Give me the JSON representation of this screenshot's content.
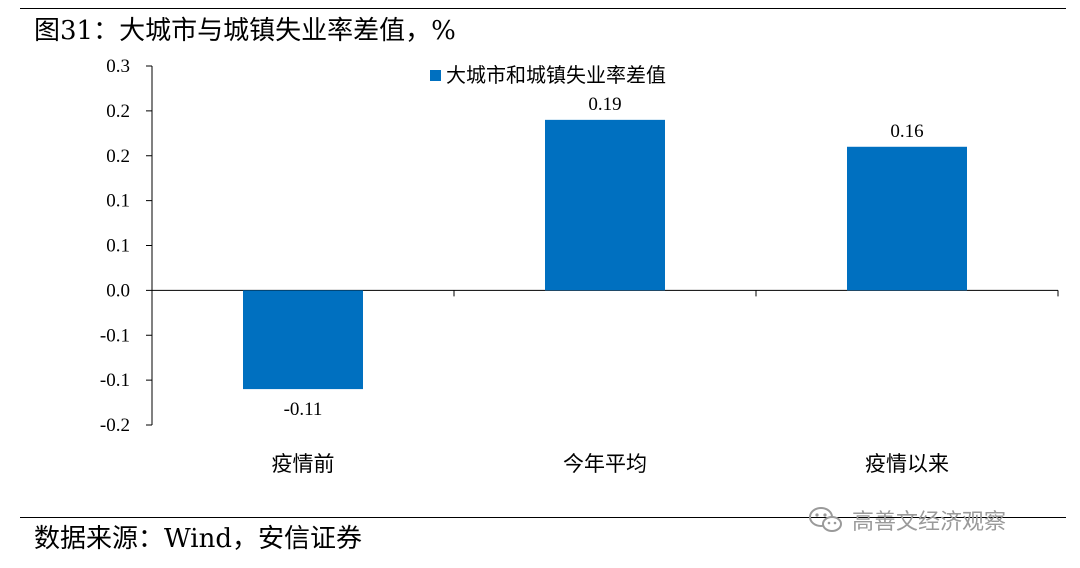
{
  "header": {
    "title": "图31：大城市与城镇失业率差值，%"
  },
  "footer": {
    "source": "数据来源：Wind，安信证券"
  },
  "watermark": {
    "text": "高善文经济观察",
    "icon": "wechat-icon",
    "color": "#9a9a9a"
  },
  "chart_data": {
    "type": "bar",
    "title": "",
    "xlabel": "",
    "ylabel": "",
    "categories": [
      "疫情前",
      "今年平均",
      "疫情以来"
    ],
    "series": [
      {
        "name": "大城市和城镇失业率差值",
        "values": [
          -0.11,
          0.19,
          0.16
        ],
        "color": "#0070C0"
      }
    ],
    "data_labels": [
      "-0.11",
      "0.19",
      "0.16"
    ],
    "ylim": [
      -0.15,
      0.25
    ],
    "y_ticks": [
      0.25,
      0.2,
      0.15,
      0.1,
      0.05,
      0.0,
      -0.05,
      -0.1,
      -0.15
    ],
    "y_tick_labels": [
      "0.3",
      "0.2",
      "0.2",
      "0.1",
      "0.1",
      "0.0",
      "-0.1",
      "-0.1",
      "-0.2"
    ],
    "grid": false,
    "legend_position": "top-center"
  }
}
